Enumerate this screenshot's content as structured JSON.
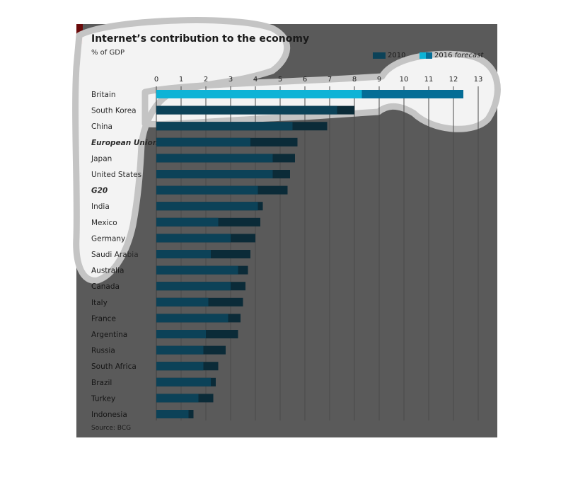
{
  "colors": {
    "panel": "#5a5a5a",
    "bar_2010": "#0c4258",
    "bar_2016": "#0b2b38",
    "britain_2010": "#0eb3d6",
    "britain_2016": "#056d96",
    "highlight": "#ffffff",
    "gridline": "#4b4b4b"
  },
  "legend": {
    "label_2010": "2010",
    "label_2016_year": "2016",
    "label_2016_word": "forecast"
  },
  "source": "Source: BCG",
  "chart_data": {
    "type": "bar",
    "orientation": "horizontal",
    "stacked_overlay": true,
    "title": "Internet’s contribution to the economy",
    "subtitle": "% of GDP",
    "xlim": [
      0,
      13
    ],
    "xticks": [
      "0",
      "1",
      "2",
      "3",
      "4",
      "5",
      "6",
      "7",
      "8",
      "9",
      "10",
      "11",
      "12",
      "13"
    ],
    "grid": true,
    "legend_position": "top-right",
    "categories": [
      "Britain",
      "South Korea",
      "China",
      "European Union",
      "Japan",
      "United States",
      "G20",
      "India",
      "Mexico",
      "Germany",
      "Saudi Arabia",
      "Australia",
      "Canada",
      "Italy",
      "France",
      "Argentina",
      "Russia",
      "South Africa",
      "Brazil",
      "Turkey",
      "Indonesia"
    ],
    "emphasized": [
      "European Union",
      "G20"
    ],
    "series": [
      {
        "name": "2010",
        "values": [
          8.3,
          7.3,
          5.5,
          3.8,
          4.7,
          4.7,
          4.1,
          4.1,
          2.5,
          3.0,
          2.2,
          3.3,
          3.0,
          2.1,
          2.9,
          2.0,
          1.9,
          1.9,
          2.2,
          1.7,
          1.3
        ]
      },
      {
        "name": "2016 forecast",
        "values": [
          12.4,
          8.0,
          6.9,
          5.7,
          5.6,
          5.4,
          5.3,
          4.3,
          4.2,
          4.0,
          3.8,
          3.7,
          3.6,
          3.5,
          3.4,
          3.3,
          2.8,
          2.5,
          2.4,
          2.3,
          1.5
        ]
      }
    ]
  }
}
